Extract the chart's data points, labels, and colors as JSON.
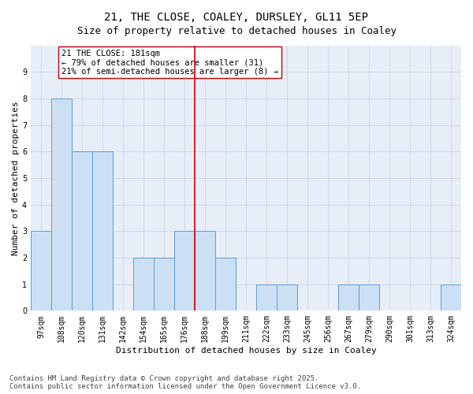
{
  "title": "21, THE CLOSE, COALEY, DURSLEY, GL11 5EP",
  "subtitle": "Size of property relative to detached houses in Coaley",
  "xlabel": "Distribution of detached houses by size in Coaley",
  "ylabel": "Number of detached properties",
  "categories": [
    "97sqm",
    "108sqm",
    "120sqm",
    "131sqm",
    "142sqm",
    "154sqm",
    "165sqm",
    "176sqm",
    "188sqm",
    "199sqm",
    "211sqm",
    "222sqm",
    "233sqm",
    "245sqm",
    "256sqm",
    "267sqm",
    "279sqm",
    "290sqm",
    "301sqm",
    "313sqm",
    "324sqm"
  ],
  "values": [
    3,
    8,
    6,
    6,
    0,
    2,
    2,
    3,
    3,
    2,
    0,
    1,
    1,
    0,
    0,
    1,
    1,
    0,
    0,
    0,
    1
  ],
  "bar_color": "#cce0f5",
  "bar_edge_color": "#5b9bd5",
  "red_line_x": 7.5,
  "red_line_color": "#cc0000",
  "annotation_text": "21 THE CLOSE: 181sqm\n← 79% of detached houses are smaller (31)\n21% of semi-detached houses are larger (8) →",
  "annotation_box_color": "#ffffff",
  "annotation_box_edge_color": "#cc0000",
  "ylim": [
    0,
    10
  ],
  "yticks": [
    0,
    1,
    2,
    3,
    4,
    5,
    6,
    7,
    8,
    9,
    10
  ],
  "grid_color": "#c8d4e8",
  "background_color": "#e8eef8",
  "footer": "Contains HM Land Registry data © Crown copyright and database right 2025.\nContains public sector information licensed under the Open Government Licence v3.0.",
  "title_fontsize": 10,
  "subtitle_fontsize": 9,
  "xlabel_fontsize": 8,
  "ylabel_fontsize": 8,
  "tick_fontsize": 7,
  "annotation_fontsize": 7.5,
  "footer_fontsize": 6.5
}
